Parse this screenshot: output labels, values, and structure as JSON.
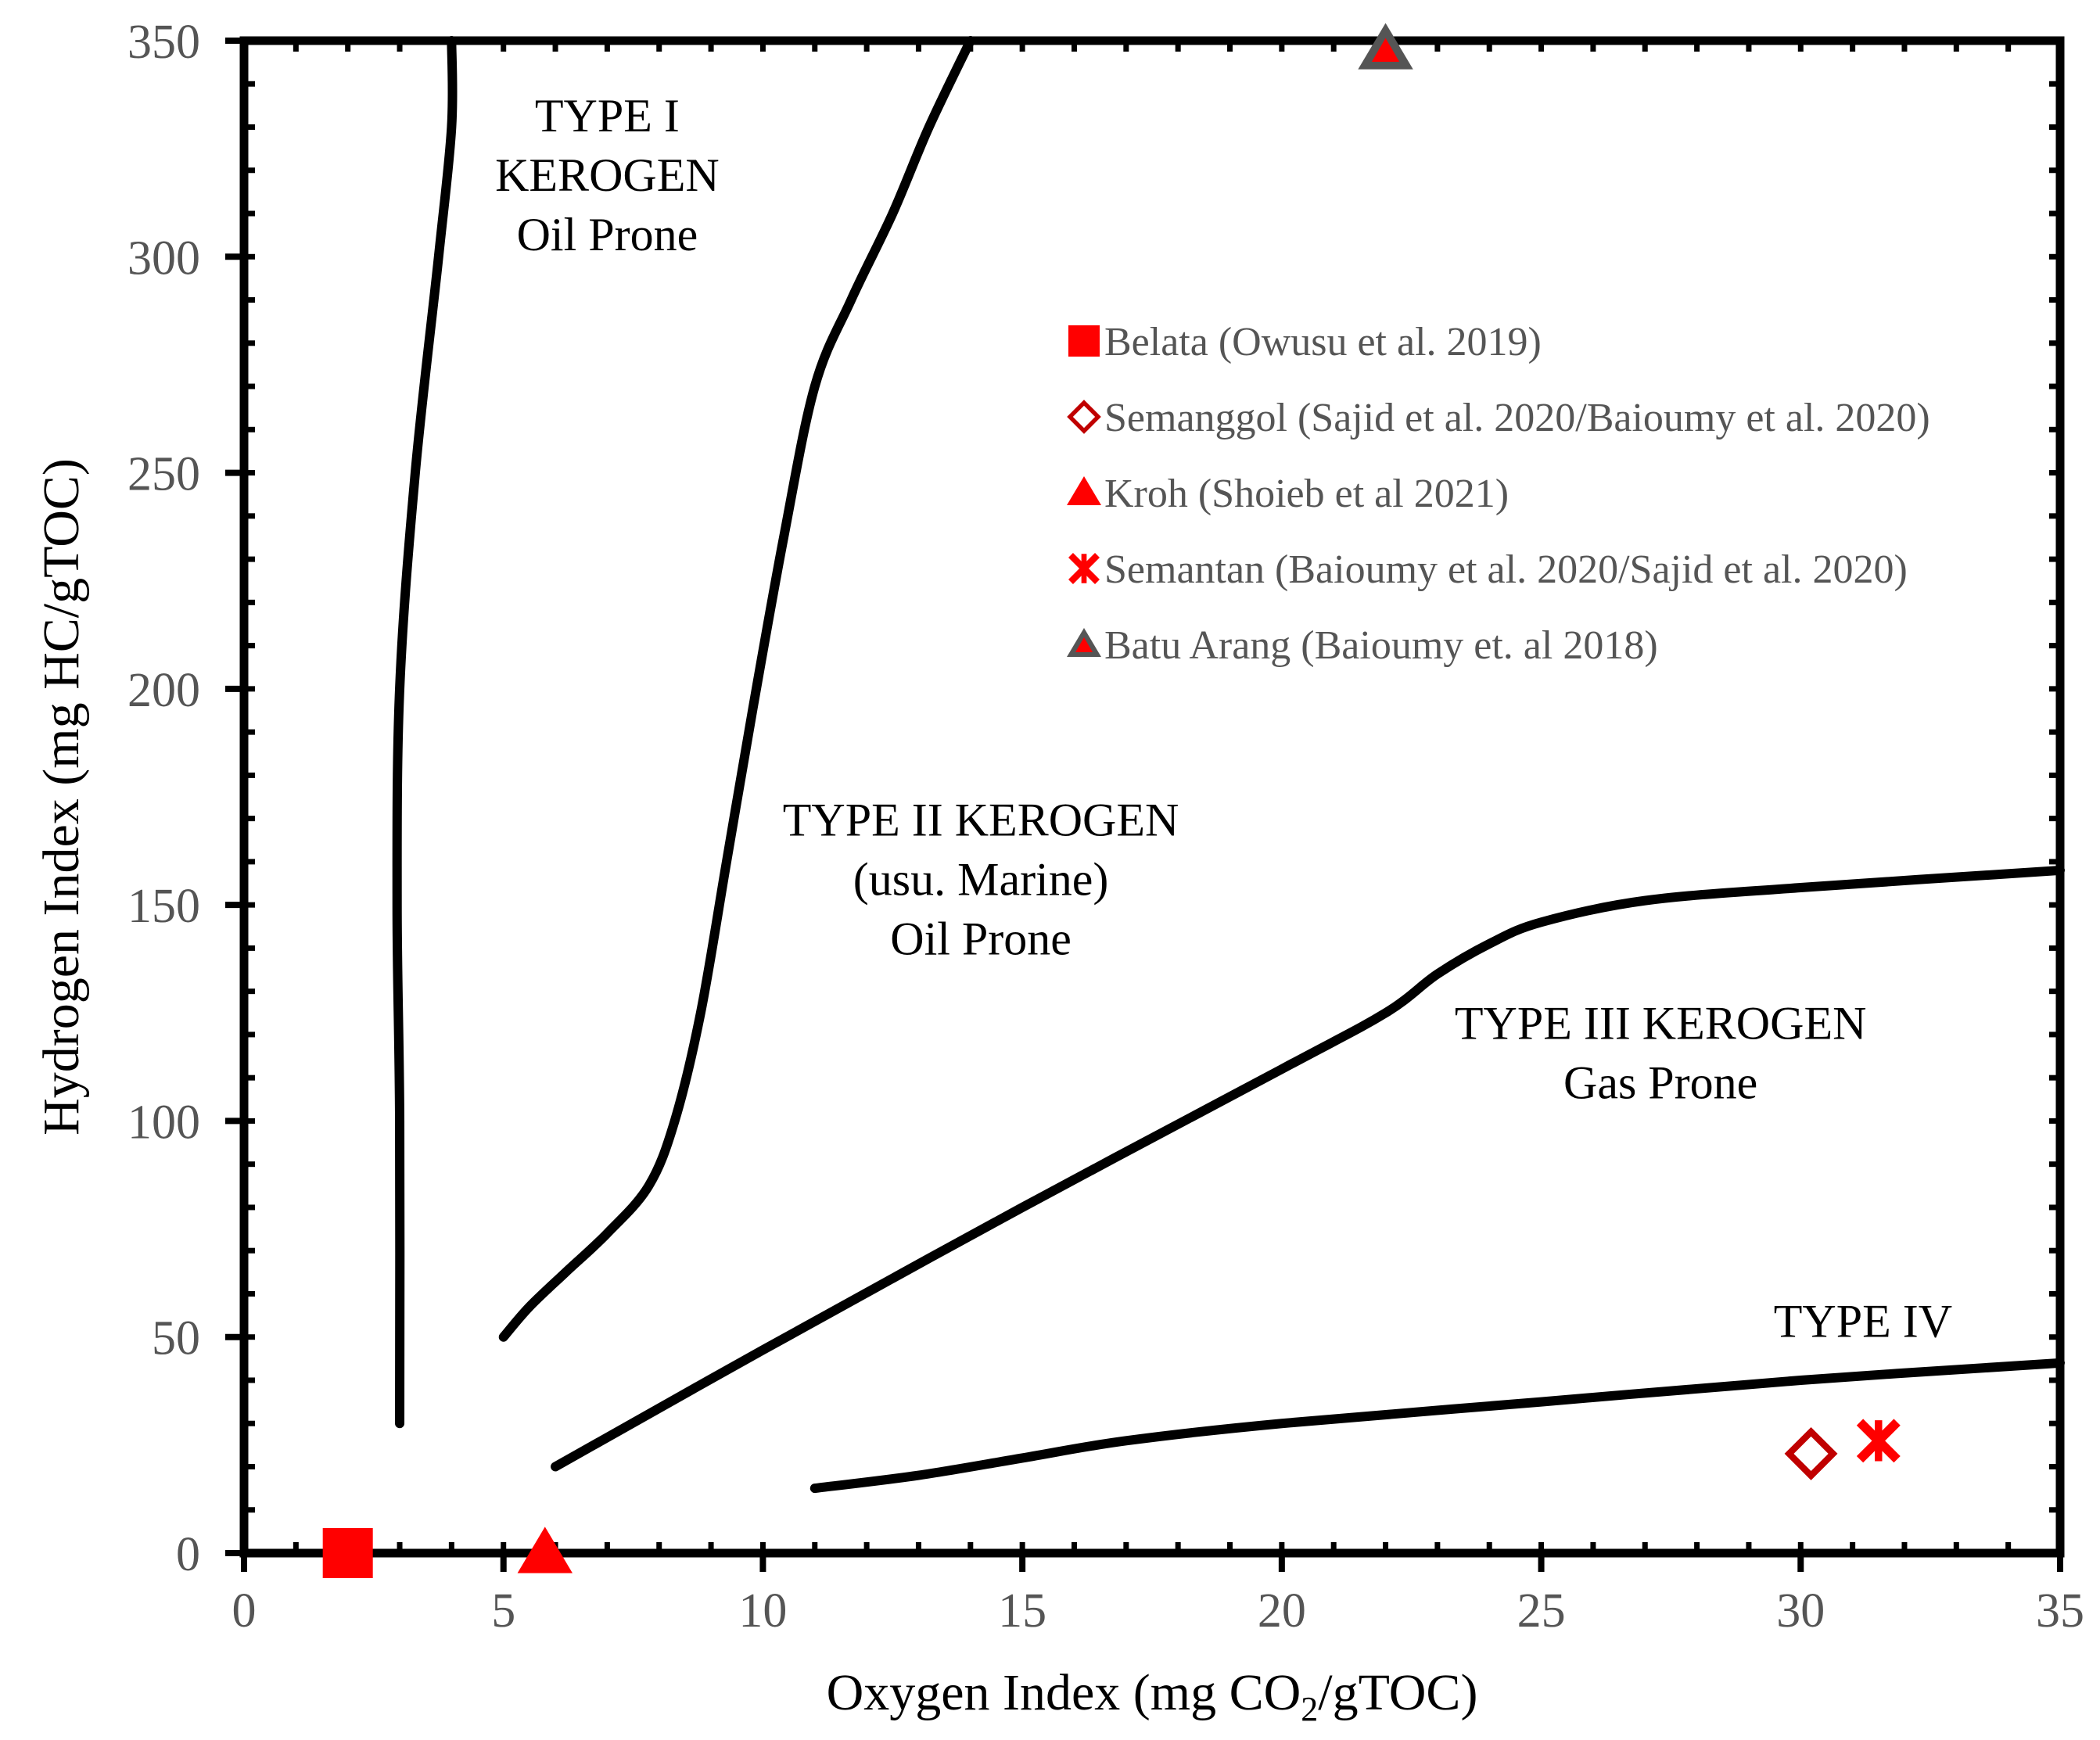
{
  "chart_data": {
    "type": "scatter",
    "title": "",
    "xlabel": {
      "prefix": "Oxygen Index (mg CO",
      "sub": "2",
      "suffix": "/gTOC)"
    },
    "ylabel": "Hydrogen Index (mg HC/gTOC)",
    "xlim": [
      0,
      35
    ],
    "ylim": [
      0,
      350
    ],
    "x_ticks": [
      0,
      5,
      10,
      15,
      20,
      25,
      30,
      35
    ],
    "y_ticks": [
      0,
      50,
      100,
      150,
      200,
      250,
      300,
      350
    ],
    "x_minor_step": 1,
    "y_minor_step": 10,
    "grid": false,
    "legend_position": "top-right (inside)",
    "series": [
      {
        "name": "Belata (Owusu et al. 2019)",
        "marker": "square",
        "color": "#ff0000",
        "points": [
          [
            2,
            0
          ]
        ]
      },
      {
        "name": "Semanggol (Sajid et al. 2020/Baioumy et al. 2020)",
        "marker": "diamond-open",
        "color": "#c00000",
        "points": [
          [
            30.2,
            23
          ]
        ]
      },
      {
        "name": "Kroh (Shoieb et al 2021)",
        "marker": "triangle",
        "color": "#ff0000",
        "points": [
          [
            5.8,
            0
          ]
        ]
      },
      {
        "name": "Semantan (Baioumy et al. 2020/Sajid et al. 2020)",
        "marker": "x",
        "color": "#ff0000",
        "points": [
          [
            31.5,
            26
          ]
        ]
      },
      {
        "name": "Batu Arang (Baioumy et. al 2018)",
        "marker": "triangle-gray",
        "color": "#ff0000",
        "edge_color": "#555555",
        "points": [
          [
            22,
            348
          ]
        ]
      }
    ],
    "boundary_curves": [
      {
        "name": "type-i-boundary",
        "points": [
          [
            3,
            30
          ],
          [
            3,
            100
          ],
          [
            2.95,
            150
          ],
          [
            3,
            200
          ],
          [
            3.3,
            250
          ],
          [
            3.75,
            300
          ],
          [
            4,
            330
          ],
          [
            4,
            350
          ]
        ]
      },
      {
        "name": "type-ii-boundary",
        "points": [
          [
            5,
            50
          ],
          [
            5.5,
            57
          ],
          [
            6.2,
            65
          ],
          [
            7,
            74
          ],
          [
            7.8,
            85
          ],
          [
            8.3,
            100
          ],
          [
            8.8,
            125
          ],
          [
            9.3,
            160
          ],
          [
            9.8,
            195
          ],
          [
            10.4,
            235
          ],
          [
            11,
            270
          ],
          [
            11.7,
            290
          ],
          [
            12.5,
            310
          ],
          [
            13.2,
            330
          ],
          [
            14,
            350
          ]
        ]
      },
      {
        "name": "type-iii-boundary",
        "points": [
          [
            6,
            20
          ],
          [
            10,
            47
          ],
          [
            15,
            80
          ],
          [
            20,
            112
          ],
          [
            22,
            125
          ],
          [
            23,
            134
          ],
          [
            24,
            141
          ],
          [
            25,
            146
          ],
          [
            27,
            151
          ],
          [
            30,
            154
          ],
          [
            35,
            158
          ]
        ]
      },
      {
        "name": "type-iv-boundary",
        "points": [
          [
            11,
            15
          ],
          [
            13,
            18
          ],
          [
            15,
            22
          ],
          [
            17,
            26
          ],
          [
            20,
            30
          ],
          [
            25,
            35
          ],
          [
            30,
            40
          ],
          [
            35,
            44
          ]
        ]
      }
    ],
    "annotations": [
      {
        "lines": [
          "TYPE I",
          "KEROGEN",
          "Oil Prone"
        ],
        "x": 7,
        "y": 329
      },
      {
        "lines": [
          "TYPE II KEROGEN",
          "(usu. Marine)",
          "Oil Prone"
        ],
        "x": 14.2,
        "y": 166
      },
      {
        "lines": [
          "TYPE III KEROGEN",
          "Gas Prone"
        ],
        "x": 27.3,
        "y": 119
      },
      {
        "lines": [
          "TYPE IV"
        ],
        "x": 31.2,
        "y": 50
      }
    ]
  }
}
